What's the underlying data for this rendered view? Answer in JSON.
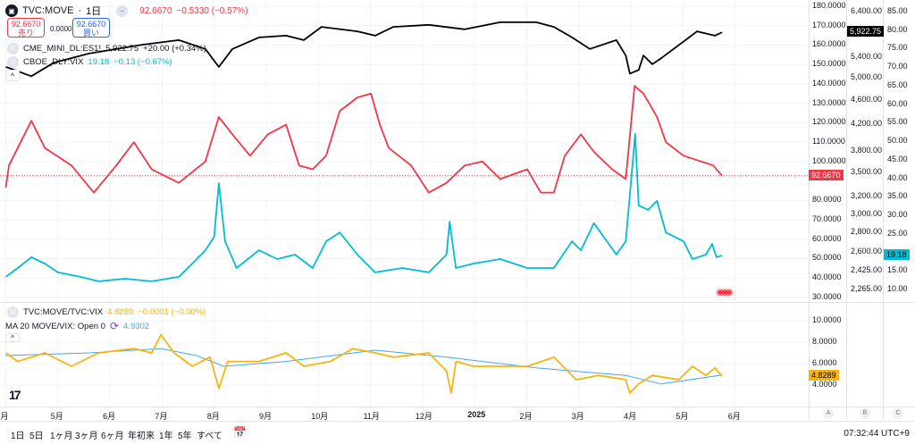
{
  "header": {
    "symbol": "TVC:MOVE",
    "separator": "·",
    "interval": "1日",
    "price": "92.6670",
    "change": "−0.5330 (−0.57%)",
    "sell_price": "92.6670",
    "sell_label": "売り",
    "spread": "0.0000",
    "buy_price": "92.6670",
    "buy_label": "買い"
  },
  "overlays": [
    {
      "badge": "E",
      "name": "CME_MINI_DL:ES1!",
      "value": "5,922.75",
      "change": "+20.00 (+0.34%)"
    },
    {
      "badge": "V",
      "name": "CBOE_DLY:VIX",
      "value": "19.18",
      "change": "−0.13 (−0.67%)"
    }
  ],
  "lower_pane": {
    "badge": "M",
    "name": "TVC:MOVE/TVC:VIX",
    "value": "4.8289",
    "change": "−0.0001 (−0.00%)",
    "ma_label": "MA 20 MOVE/VIX: Open 0",
    "ma_value": "4.9302"
  },
  "axes": {
    "move": [
      "180.0000",
      "170.0000",
      "160.0000",
      "150.0000",
      "140.0000",
      "130.0000",
      "120.0000",
      "110.0000",
      "100.0000",
      "80.0000",
      "70.0000",
      "60.0000",
      "50.0000",
      "40.0000",
      "30.0000"
    ],
    "es": [
      "6,400.00",
      "5,400.00",
      "5,000.00",
      "4,600.00",
      "4,200.00",
      "3,800.00",
      "3,500.00",
      "3,200.00",
      "3,000.00",
      "2,800.00",
      "2,600.00",
      "2,425.00",
      "2,265.00"
    ],
    "vix": [
      "85.00",
      "80.00",
      "75.00",
      "70.00",
      "65.00",
      "60.00",
      "55.00",
      "50.00",
      "45.00",
      "40.00",
      "35.00",
      "30.00",
      "25.00",
      "15.00",
      "10.00"
    ],
    "ratio": [
      "10.0000",
      "8.0000",
      "6.0000",
      "4.0000"
    ],
    "tags": {
      "move": "92.6670",
      "es": "5,922.75",
      "vix": "19.18",
      "ratio": "4.8289"
    },
    "scale_buttons": [
      "A",
      "B",
      "C"
    ]
  },
  "time_axis": [
    "月",
    "5月",
    "6月",
    "7月",
    "8月",
    "9月",
    "10月",
    "11月",
    "12月",
    "2025",
    "2月",
    "3月",
    "4月",
    "5月",
    "6月"
  ],
  "toolbar": {
    "ranges": [
      "1日",
      "5日",
      "1ヶ月",
      "3ヶ月",
      "6ヶ月",
      "年初来",
      "1年",
      "5年",
      "すべて"
    ],
    "clock": "07:32:44 UTC+9"
  },
  "colors": {
    "move": "#f23645",
    "es": "#000000",
    "vix": "#00bcd4",
    "ratio": "#f5b50a",
    "ma": "#42a5f5"
  },
  "chart_data": {
    "type": "line",
    "x_unit": "months since Apr 1 2024",
    "series": [
      {
        "name": "TVC:MOVE",
        "axis": "move",
        "points": [
          [
            0,
            86.6
          ],
          [
            0.06,
            98
          ],
          [
            0.49,
            121
          ],
          [
            0.75,
            107
          ],
          [
            1.26,
            98
          ],
          [
            1.69,
            84
          ],
          [
            2.12,
            98
          ],
          [
            2.46,
            110
          ],
          [
            2.8,
            96
          ],
          [
            3.32,
            89
          ],
          [
            3.83,
            100
          ],
          [
            4.09,
            123
          ],
          [
            4.35,
            114
          ],
          [
            4.69,
            103
          ],
          [
            5.03,
            114
          ],
          [
            5.38,
            119
          ],
          [
            5.63,
            98
          ],
          [
            5.89,
            96
          ],
          [
            6.15,
            103
          ],
          [
            6.41,
            126
          ],
          [
            6.75,
            133
          ],
          [
            7.01,
            135
          ],
          [
            7.18,
            119
          ],
          [
            7.35,
            107
          ],
          [
            7.78,
            98
          ],
          [
            8.12,
            84
          ],
          [
            8.46,
            89
          ],
          [
            8.81,
            98
          ],
          [
            9.15,
            100
          ],
          [
            9.49,
            91
          ],
          [
            10.01,
            96
          ],
          [
            10.27,
            84
          ],
          [
            10.52,
            84
          ],
          [
            10.73,
            103
          ],
          [
            11.04,
            114
          ],
          [
            11.29,
            105
          ],
          [
            11.64,
            96
          ],
          [
            11.9,
            91
          ],
          [
            12.07,
            139
          ],
          [
            12.24,
            135
          ],
          [
            12.5,
            123
          ],
          [
            12.67,
            110
          ],
          [
            13.01,
            103
          ],
          [
            13.35,
            100
          ],
          [
            13.58,
            98
          ],
          [
            13.75,
            92.667
          ]
        ]
      },
      {
        "name": "CME_MINI_DL:ES1!",
        "axis": "es",
        "points": [
          [
            0,
            5203
          ],
          [
            0.49,
            5025
          ],
          [
            0.92,
            5285
          ],
          [
            1.6,
            5470
          ],
          [
            2.12,
            5565
          ],
          [
            2.63,
            5656
          ],
          [
            3.32,
            5753
          ],
          [
            3.83,
            5565
          ],
          [
            4.09,
            5203
          ],
          [
            4.35,
            5565
          ],
          [
            4.86,
            5810
          ],
          [
            5.38,
            5850
          ],
          [
            5.72,
            5753
          ],
          [
            6.06,
            6045
          ],
          [
            6.75,
            5945
          ],
          [
            7.09,
            5850
          ],
          [
            7.44,
            6045
          ],
          [
            8.12,
            6090
          ],
          [
            8.81,
            5990
          ],
          [
            9.49,
            6150
          ],
          [
            10.18,
            6150
          ],
          [
            10.52,
            6045
          ],
          [
            10.87,
            5810
          ],
          [
            11.21,
            5565
          ],
          [
            11.72,
            5753
          ],
          [
            11.9,
            5430
          ],
          [
            11.98,
            5075
          ],
          [
            12.15,
            5145
          ],
          [
            12.24,
            5430
          ],
          [
            12.41,
            5255
          ],
          [
            12.58,
            5375
          ],
          [
            12.93,
            5656
          ],
          [
            13.27,
            5945
          ],
          [
            13.61,
            5850
          ],
          [
            13.75,
            5922.75
          ]
        ]
      },
      {
        "name": "CBOE_DLY:VIX",
        "axis": "vix",
        "points": [
          [
            0,
            13.4
          ],
          [
            0.23,
            15.8
          ],
          [
            0.49,
            18.7
          ],
          [
            0.75,
            17
          ],
          [
            1.0,
            14.6
          ],
          [
            1.43,
            13.4
          ],
          [
            1.78,
            12.2
          ],
          [
            2.29,
            12.9
          ],
          [
            2.8,
            12.2
          ],
          [
            3.32,
            13.4
          ],
          [
            3.58,
            17
          ],
          [
            3.83,
            20.6
          ],
          [
            4.0,
            24.2
          ],
          [
            4.09,
            38.7
          ],
          [
            4.21,
            23
          ],
          [
            4.43,
            15.8
          ],
          [
            4.86,
            20.6
          ],
          [
            5.21,
            18.2
          ],
          [
            5.55,
            19.4
          ],
          [
            5.89,
            15.8
          ],
          [
            6.15,
            23
          ],
          [
            6.41,
            25.4
          ],
          [
            6.75,
            19.4
          ],
          [
            7.09,
            14.6
          ],
          [
            7.61,
            15.8
          ],
          [
            8.12,
            14.6
          ],
          [
            8.46,
            19.4
          ],
          [
            8.52,
            28.3
          ],
          [
            8.64,
            15.8
          ],
          [
            8.98,
            17
          ],
          [
            9.49,
            18.2
          ],
          [
            10.01,
            15.8
          ],
          [
            10.52,
            15.8
          ],
          [
            10.87,
            23
          ],
          [
            11.04,
            20.6
          ],
          [
            11.29,
            27.9
          ],
          [
            11.72,
            19.4
          ],
          [
            11.9,
            23
          ],
          [
            12.03,
            43.5
          ],
          [
            12.08,
            52
          ],
          [
            12.15,
            32.7
          ],
          [
            12.33,
            31.5
          ],
          [
            12.5,
            33.9
          ],
          [
            12.67,
            25.4
          ],
          [
            13.01,
            23
          ],
          [
            13.18,
            18.2
          ],
          [
            13.44,
            19.4
          ],
          [
            13.56,
            22.3
          ],
          [
            13.64,
            18.7
          ],
          [
            13.75,
            19.18
          ]
        ]
      },
      {
        "name": "TVC:MOVE/TVC:VIX",
        "axis": "ratio",
        "points": [
          [
            0,
            7
          ],
          [
            0.23,
            6.2
          ],
          [
            0.75,
            7
          ],
          [
            1.26,
            5.75
          ],
          [
            1.78,
            7
          ],
          [
            2.46,
            7.4
          ],
          [
            2.8,
            7
          ],
          [
            2.98,
            8.7
          ],
          [
            3.23,
            7
          ],
          [
            3.58,
            5.75
          ],
          [
            3.92,
            6.6
          ],
          [
            4.09,
            3.7
          ],
          [
            4.26,
            6.2
          ],
          [
            4.86,
            6.2
          ],
          [
            5.38,
            7
          ],
          [
            5.72,
            5.75
          ],
          [
            6.23,
            6.2
          ],
          [
            6.66,
            7.4
          ],
          [
            7.09,
            7
          ],
          [
            7.44,
            6.6
          ],
          [
            8.12,
            7
          ],
          [
            8.46,
            5.3
          ],
          [
            8.55,
            3.25
          ],
          [
            8.64,
            6.2
          ],
          [
            8.98,
            5.75
          ],
          [
            9.49,
            5.75
          ],
          [
            10.01,
            5.75
          ],
          [
            10.52,
            6.6
          ],
          [
            10.95,
            4.5
          ],
          [
            11.38,
            4.9
          ],
          [
            11.9,
            4.5
          ],
          [
            11.98,
            3.25
          ],
          [
            12.15,
            4.1
          ],
          [
            12.41,
            4.9
          ],
          [
            12.92,
            4.5
          ],
          [
            13.18,
            5.75
          ],
          [
            13.44,
            4.9
          ],
          [
            13.61,
            5.6
          ],
          [
            13.75,
            4.8289
          ]
        ]
      },
      {
        "name": "MA 20 MOVE/VIX",
        "axis": "ratio",
        "points": [
          [
            0,
            6.75
          ],
          [
            1.6,
            7
          ],
          [
            2.98,
            7.4
          ],
          [
            3.66,
            6.75
          ],
          [
            4.18,
            5.75
          ],
          [
            5.38,
            6.2
          ],
          [
            7.09,
            7.25
          ],
          [
            8.46,
            6.6
          ],
          [
            10.18,
            5.6
          ],
          [
            11.9,
            4.9
          ],
          [
            12.58,
            4.1
          ],
          [
            13.75,
            4.93
          ]
        ]
      }
    ],
    "ylim": {
      "move": [
        30,
        180
      ],
      "es": [
        2265,
        6400
      ],
      "vix": [
        10,
        85
      ],
      "ratio": [
        4,
        10
      ]
    }
  }
}
